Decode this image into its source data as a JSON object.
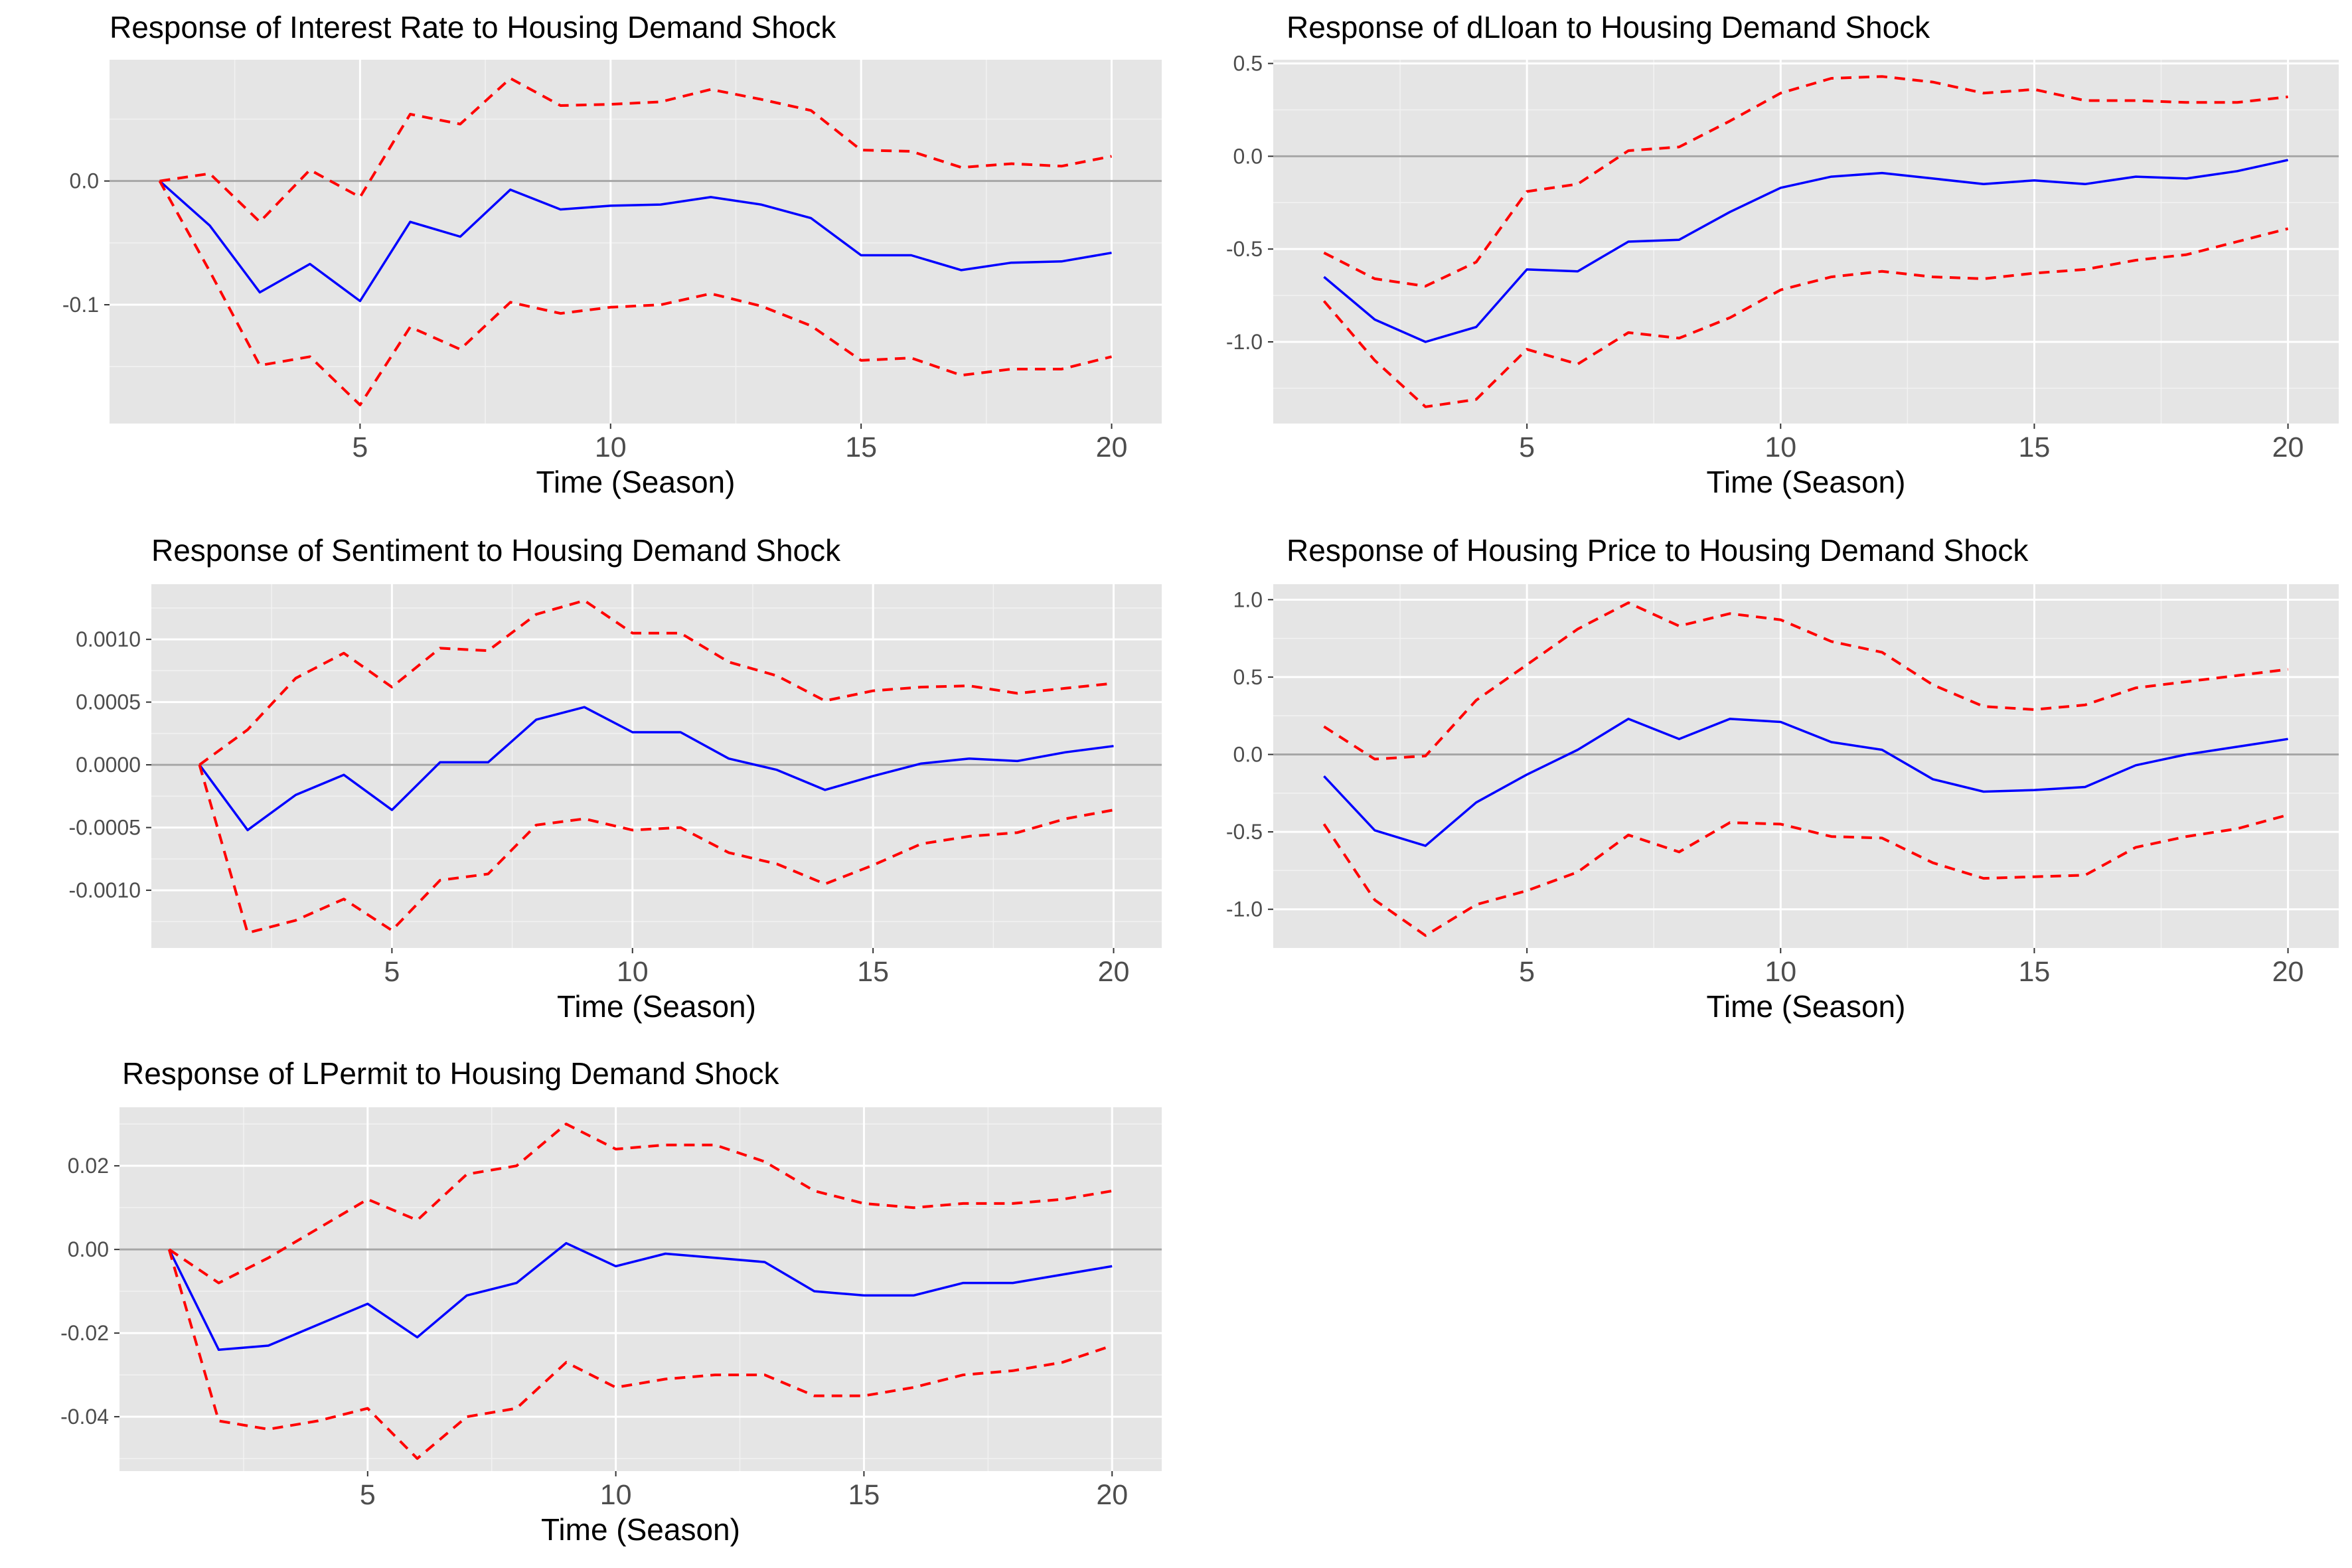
{
  "colors": {
    "panel_background": "#e5e5e5",
    "grid_major": "#ffffff",
    "grid_minor": "#f2f2f2",
    "zero_line": "#a6a6a6",
    "response_line": "#0000ff",
    "band_line": "#ff0000",
    "tick_text": "#4d4d4d"
  },
  "chart_data": [
    {
      "type": "line",
      "title": "Response of Interest Rate to Housing Demand Shock",
      "xlabel": "Time (Season)",
      "ylabel": "",
      "xlim": [
        0.0,
        21.0
      ],
      "ylim": [
        -0.196,
        0.098
      ],
      "x_ticks": [
        5,
        10,
        15,
        20
      ],
      "x_tick_labels": [
        "5",
        "10",
        "15",
        "20"
      ],
      "y_ticks": [
        0.0,
        -0.1
      ],
      "y_tick_labels": [
        "0.0",
        "-0.1"
      ],
      "hline": 0.0,
      "x": [
        1,
        2,
        3,
        4,
        5,
        6,
        7,
        8,
        9,
        10,
        11,
        12,
        13,
        14,
        15,
        16,
        17,
        18,
        19,
        20
      ],
      "series": [
        {
          "role": "response",
          "style": "solid",
          "values": [
            0.0,
            -0.036,
            -0.09,
            -0.067,
            -0.097,
            -0.033,
            -0.045,
            -0.007,
            -0.023,
            -0.02,
            -0.019,
            -0.013,
            -0.019,
            -0.03,
            -0.06,
            -0.06,
            -0.072,
            -0.066,
            -0.065,
            -0.058
          ]
        },
        {
          "role": "upper",
          "style": "dashed",
          "values": [
            0.0,
            0.006,
            -0.033,
            0.009,
            -0.013,
            0.054,
            0.046,
            0.083,
            0.061,
            0.062,
            0.064,
            0.074,
            0.066,
            0.057,
            0.025,
            0.024,
            0.011,
            0.014,
            0.012,
            0.02
          ]
        },
        {
          "role": "lower",
          "style": "dashed",
          "values": [
            0.0,
            -0.073,
            -0.149,
            -0.142,
            -0.181,
            -0.118,
            -0.136,
            -0.098,
            -0.107,
            -0.102,
            -0.1,
            -0.091,
            -0.101,
            -0.117,
            -0.145,
            -0.143,
            -0.157,
            -0.152,
            -0.152,
            -0.142
          ]
        }
      ]
    },
    {
      "type": "line",
      "title": "Response of dLloan to Housing Demand Shock",
      "xlabel": "Time (Season)",
      "ylabel": "",
      "xlim": [
        0.0,
        21.0
      ],
      "ylim": [
        -1.44,
        0.52
      ],
      "x_ticks": [
        5,
        10,
        15,
        20
      ],
      "x_tick_labels": [
        "5",
        "10",
        "15",
        "20"
      ],
      "y_ticks": [
        0.5,
        0.0,
        -0.5,
        -1.0
      ],
      "y_tick_labels": [
        "0.5",
        "0.0",
        "-0.5",
        "-1.0"
      ],
      "hline": 0.0,
      "x": [
        1,
        2,
        3,
        4,
        5,
        6,
        7,
        8,
        9,
        10,
        11,
        12,
        13,
        14,
        15,
        16,
        17,
        18,
        19,
        20
      ],
      "series": [
        {
          "role": "response",
          "style": "solid",
          "values": [
            -0.65,
            -0.88,
            -1.0,
            -0.92,
            -0.61,
            -0.62,
            -0.46,
            -0.45,
            -0.3,
            -0.17,
            -0.11,
            -0.09,
            -0.12,
            -0.15,
            -0.13,
            -0.15,
            -0.11,
            -0.12,
            -0.08,
            -0.02
          ]
        },
        {
          "role": "upper",
          "style": "dashed",
          "values": [
            -0.52,
            -0.66,
            -0.7,
            -0.57,
            -0.19,
            -0.15,
            0.03,
            0.05,
            0.19,
            0.34,
            0.42,
            0.43,
            0.4,
            0.34,
            0.36,
            0.3,
            0.3,
            0.29,
            0.29,
            0.32
          ]
        },
        {
          "role": "lower",
          "style": "dashed",
          "values": [
            -0.78,
            -1.1,
            -1.35,
            -1.31,
            -1.04,
            -1.12,
            -0.95,
            -0.98,
            -0.87,
            -0.72,
            -0.65,
            -0.62,
            -0.65,
            -0.66,
            -0.63,
            -0.61,
            -0.56,
            -0.53,
            -0.46,
            -0.39
          ]
        }
      ]
    },
    {
      "type": "line",
      "title": "Response of Sentiment to Housing Demand Shock",
      "xlabel": "Time (Season)",
      "ylabel": "",
      "xlim": [
        0.0,
        21.0
      ],
      "ylim": [
        -0.00146,
        0.00144
      ],
      "x_ticks": [
        5,
        10,
        15,
        20
      ],
      "x_tick_labels": [
        "5",
        "10",
        "15",
        "20"
      ],
      "y_ticks": [
        0.001,
        0.0005,
        0.0,
        -0.0005,
        -0.001
      ],
      "y_tick_labels": [
        "0.0010",
        "0.0005",
        "0.0000",
        "-0.0005",
        "-0.0010"
      ],
      "hline": 0.0,
      "x": [
        1,
        2,
        3,
        4,
        5,
        6,
        7,
        8,
        9,
        10,
        11,
        12,
        13,
        14,
        15,
        16,
        17,
        18,
        19,
        20
      ],
      "series": [
        {
          "role": "response",
          "style": "solid",
          "values": [
            0.0,
            -0.00052,
            -0.00024,
            -8e-05,
            -0.00036,
            2e-05,
            2e-05,
            0.00036,
            0.00046,
            0.00026,
            0.00026,
            5e-05,
            -4e-05,
            -0.0002,
            -9e-05,
            1e-05,
            5e-05,
            3e-05,
            0.0001,
            0.00015
          ]
        },
        {
          "role": "upper",
          "style": "dashed",
          "values": [
            0.0,
            0.00028,
            0.00069,
            0.00089,
            0.00062,
            0.00093,
            0.00091,
            0.0012,
            0.00131,
            0.00105,
            0.00105,
            0.00082,
            0.00071,
            0.00051,
            0.00059,
            0.00062,
            0.00063,
            0.00057,
            0.00061,
            0.00065
          ]
        },
        {
          "role": "lower",
          "style": "dashed",
          "values": [
            0.0,
            -0.00134,
            -0.00124,
            -0.00107,
            -0.00132,
            -0.00092,
            -0.00087,
            -0.00048,
            -0.00043,
            -0.00052,
            -0.0005,
            -0.0007,
            -0.00079,
            -0.00095,
            -0.0008,
            -0.00063,
            -0.00057,
            -0.00054,
            -0.00043,
            -0.00036
          ]
        }
      ]
    },
    {
      "type": "line",
      "title": "Response of Housing Price to Housing Demand Shock",
      "xlabel": "Time (Season)",
      "ylabel": "",
      "xlim": [
        0.0,
        21.0
      ],
      "ylim": [
        -1.25,
        1.1
      ],
      "x_ticks": [
        5,
        10,
        15,
        20
      ],
      "x_tick_labels": [
        "5",
        "10",
        "15",
        "20"
      ],
      "y_ticks": [
        1.0,
        0.5,
        0.0,
        -0.5,
        -1.0
      ],
      "y_tick_labels": [
        "1.0",
        "0.5",
        "0.0",
        "-0.5",
        "-1.0"
      ],
      "hline": 0.0,
      "x": [
        1,
        2,
        3,
        4,
        5,
        6,
        7,
        8,
        9,
        10,
        11,
        12,
        13,
        14,
        15,
        16,
        17,
        18,
        19,
        20
      ],
      "series": [
        {
          "role": "response",
          "style": "solid",
          "values": [
            -0.14,
            -0.49,
            -0.59,
            -0.31,
            -0.13,
            0.03,
            0.23,
            0.1,
            0.23,
            0.21,
            0.08,
            0.03,
            -0.16,
            -0.24,
            -0.23,
            -0.21,
            -0.07,
            0.0,
            0.05,
            0.1
          ]
        },
        {
          "role": "upper",
          "style": "dashed",
          "values": [
            0.18,
            -0.03,
            -0.01,
            0.35,
            0.58,
            0.81,
            0.98,
            0.83,
            0.91,
            0.87,
            0.73,
            0.66,
            0.45,
            0.31,
            0.29,
            0.32,
            0.43,
            0.47,
            0.51,
            0.55
          ]
        },
        {
          "role": "lower",
          "style": "dashed",
          "values": [
            -0.45,
            -0.94,
            -1.17,
            -0.97,
            -0.88,
            -0.76,
            -0.52,
            -0.63,
            -0.44,
            -0.45,
            -0.53,
            -0.54,
            -0.7,
            -0.8,
            -0.79,
            -0.78,
            -0.6,
            -0.53,
            -0.48,
            -0.39
          ]
        }
      ]
    },
    {
      "type": "line",
      "title": "Response of LPermit to Housing Demand Shock",
      "xlabel": "Time (Season)",
      "ylabel": "",
      "xlim": [
        0.0,
        21.0
      ],
      "ylim": [
        -0.053,
        0.034
      ],
      "x_ticks": [
        5,
        10,
        15,
        20
      ],
      "x_tick_labels": [
        "5",
        "10",
        "15",
        "20"
      ],
      "y_ticks": [
        0.02,
        0.0,
        -0.02,
        -0.04
      ],
      "y_tick_labels": [
        "0.02",
        "0.00",
        "-0.02",
        "-0.04"
      ],
      "hline": 0.0,
      "x": [
        1,
        2,
        3,
        4,
        5,
        6,
        7,
        8,
        9,
        10,
        11,
        12,
        13,
        14,
        15,
        16,
        17,
        18,
        19,
        20
      ],
      "series": [
        {
          "role": "response",
          "style": "solid",
          "values": [
            0.0,
            -0.024,
            -0.023,
            -0.018,
            -0.013,
            -0.021,
            -0.011,
            -0.008,
            0.0015,
            -0.004,
            -0.001,
            -0.002,
            -0.003,
            -0.01,
            -0.011,
            -0.011,
            -0.008,
            -0.008,
            -0.006,
            -0.004
          ]
        },
        {
          "role": "upper",
          "style": "dashed",
          "values": [
            0.0,
            -0.008,
            -0.002,
            0.005,
            0.012,
            0.007,
            0.018,
            0.02,
            0.03,
            0.024,
            0.025,
            0.025,
            0.021,
            0.014,
            0.011,
            0.01,
            0.011,
            0.011,
            0.012,
            0.014
          ]
        },
        {
          "role": "lower",
          "style": "dashed",
          "values": [
            0.0,
            -0.041,
            -0.043,
            -0.041,
            -0.038,
            -0.05,
            -0.04,
            -0.038,
            -0.027,
            -0.033,
            -0.031,
            -0.03,
            -0.03,
            -0.035,
            -0.035,
            -0.033,
            -0.03,
            -0.029,
            -0.027,
            -0.023
          ]
        }
      ]
    }
  ]
}
